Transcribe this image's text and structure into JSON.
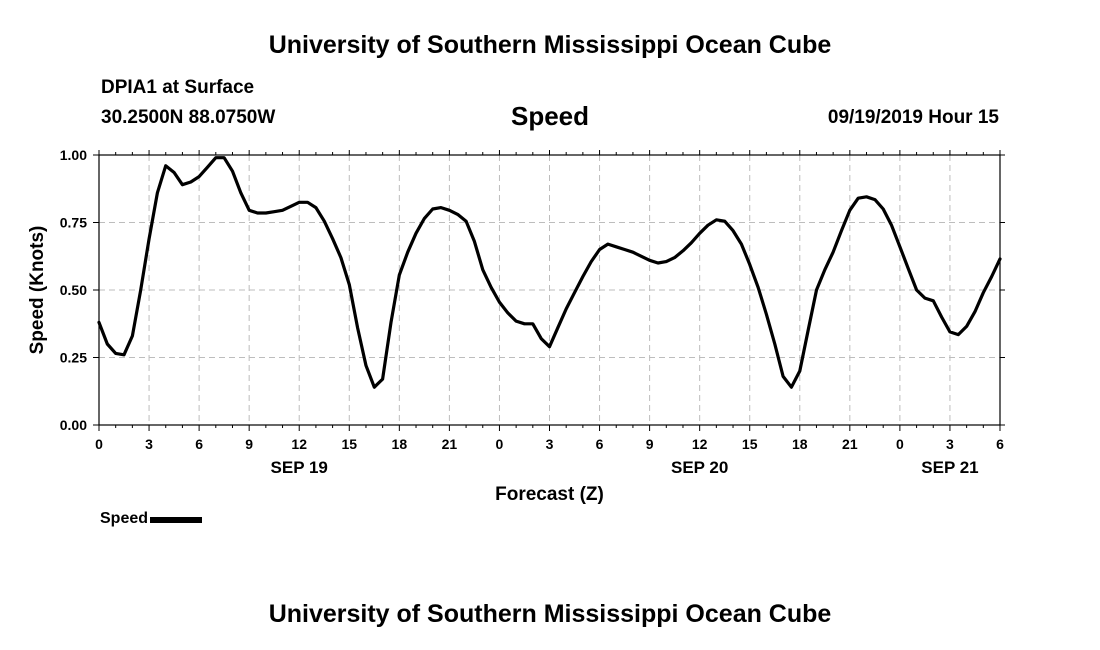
{
  "header": {
    "title": "University of Southern Mississippi Ocean Cube",
    "station": "DPIA1 at Surface",
    "coords": "30.2500N 88.0750W",
    "datetime": "09/19/2019 Hour 15"
  },
  "footer": {
    "title": "University of Southern Mississippi Ocean Cube"
  },
  "chart_data": {
    "type": "line",
    "title": "Speed",
    "xlabel": "Forecast (Z)",
    "ylabel": "Speed (Knots)",
    "x_unit": "hours from 09/19 00Z",
    "xlim": [
      0,
      54
    ],
    "ylim": [
      0,
      1
    ],
    "grid": true,
    "yticks": [
      {
        "value": 0,
        "label": "0.00"
      },
      {
        "value": 0.25,
        "label": "0.25"
      },
      {
        "value": 0.5,
        "label": "0.50"
      },
      {
        "value": 0.75,
        "label": "0.75"
      },
      {
        "value": 1,
        "label": "1.00"
      }
    ],
    "xticks": [
      {
        "value": 0,
        "label": "0"
      },
      {
        "value": 3,
        "label": "3"
      },
      {
        "value": 6,
        "label": "6"
      },
      {
        "value": 9,
        "label": "9"
      },
      {
        "value": 12,
        "label": "12"
      },
      {
        "value": 15,
        "label": "15"
      },
      {
        "value": 18,
        "label": "18"
      },
      {
        "value": 21,
        "label": "21"
      },
      {
        "value": 24,
        "label": "0"
      },
      {
        "value": 27,
        "label": "3"
      },
      {
        "value": 30,
        "label": "6"
      },
      {
        "value": 33,
        "label": "9"
      },
      {
        "value": 36,
        "label": "12"
      },
      {
        "value": 39,
        "label": "15"
      },
      {
        "value": 42,
        "label": "18"
      },
      {
        "value": 45,
        "label": "21"
      },
      {
        "value": 48,
        "label": "0"
      },
      {
        "value": 51,
        "label": "3"
      },
      {
        "value": 54,
        "label": "6"
      }
    ],
    "date_labels": [
      {
        "value": 12,
        "label": "SEP 19"
      },
      {
        "value": 36,
        "label": "SEP 20"
      },
      {
        "value": 51,
        "label": "SEP 21"
      }
    ],
    "legend": {
      "label": "Speed",
      "position": "bottom-left"
    },
    "series": [
      {
        "name": "Speed",
        "x": [
          0,
          0.5,
          1,
          1.5,
          2,
          2.5,
          3,
          3.5,
          4,
          4.5,
          5,
          5.5,
          6,
          6.5,
          7,
          7.5,
          8,
          8.5,
          9,
          9.5,
          10,
          10.5,
          11,
          11.5,
          12,
          12.5,
          13,
          13.5,
          14,
          14.5,
          15,
          15.5,
          16,
          16.5,
          17,
          17.5,
          18,
          18.5,
          19,
          19.5,
          20,
          20.5,
          21,
          21.5,
          22,
          22.5,
          23,
          23.5,
          24,
          24.5,
          25,
          25.5,
          26,
          26.5,
          27,
          27.5,
          28,
          28.5,
          29,
          29.5,
          30,
          30.5,
          31,
          31.5,
          32,
          32.5,
          33,
          33.5,
          34,
          34.5,
          35,
          35.5,
          36,
          36.5,
          37,
          37.5,
          38,
          38.5,
          39,
          39.5,
          40,
          40.5,
          41,
          41.5,
          42,
          42.5,
          43,
          43.5,
          44,
          44.5,
          45,
          45.5,
          46,
          46.5,
          47,
          47.5,
          48,
          48.5,
          49,
          49.5,
          50,
          50.5,
          51,
          51.5,
          52,
          52.5,
          53,
          53.5,
          54
        ],
        "values": [
          0.38,
          0.3,
          0.265,
          0.26,
          0.33,
          0.5,
          0.69,
          0.86,
          0.96,
          0.935,
          0.89,
          0.9,
          0.92,
          0.955,
          0.99,
          0.99,
          0.94,
          0.86,
          0.795,
          0.785,
          0.785,
          0.79,
          0.795,
          0.81,
          0.825,
          0.825,
          0.805,
          0.755,
          0.69,
          0.62,
          0.52,
          0.36,
          0.22,
          0.14,
          0.17,
          0.38,
          0.555,
          0.64,
          0.71,
          0.765,
          0.8,
          0.805,
          0.795,
          0.78,
          0.755,
          0.68,
          0.575,
          0.51,
          0.455,
          0.415,
          0.385,
          0.375,
          0.375,
          0.32,
          0.29,
          0.36,
          0.43,
          0.49,
          0.55,
          0.605,
          0.65,
          0.67,
          0.66,
          0.65,
          0.64,
          0.625,
          0.61,
          0.6,
          0.605,
          0.62,
          0.645,
          0.675,
          0.71,
          0.74,
          0.76,
          0.755,
          0.72,
          0.67,
          0.595,
          0.51,
          0.41,
          0.3,
          0.18,
          0.14,
          0.2,
          0.35,
          0.5,
          0.575,
          0.64,
          0.72,
          0.795,
          0.84,
          0.845,
          0.835,
          0.8,
          0.74,
          0.66,
          0.58,
          0.5,
          0.47,
          0.46,
          0.4,
          0.345,
          0.335,
          0.365,
          0.42,
          0.49,
          0.55,
          0.615
        ]
      }
    ]
  }
}
